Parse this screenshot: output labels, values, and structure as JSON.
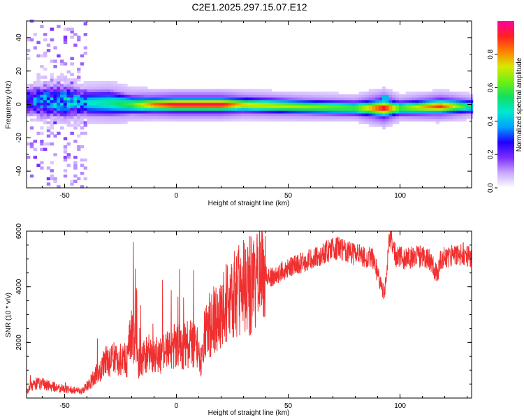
{
  "title": "C2E1.2025.297.15.07.E12",
  "chart_data": [
    {
      "type": "heatmap",
      "xlabel": "Height of straight line (km)",
      "ylabel": "Frequency (Hz)",
      "xlim": [
        -67,
        132
      ],
      "ylim": [
        -50,
        50
      ],
      "xticks": [
        -50,
        0,
        50,
        100
      ],
      "yticks": [
        -40,
        -20,
        0,
        20,
        40
      ],
      "colorbar": {
        "label": "Normalized spectral amplitude",
        "range": [
          0,
          1
        ],
        "ticks": [
          "0.0",
          "0.2",
          "0.4",
          "0.6",
          "0.8"
        ],
        "colors": [
          "#ffffff",
          "#c8a8ff",
          "#7b2cff",
          "#2000ff",
          "#00a0ff",
          "#00e8d0",
          "#10e060",
          "#70f010",
          "#d8e800",
          "#ff8000",
          "#ff2020",
          "#ff00a0"
        ]
      },
      "ridge": [
        {
          "x": -67,
          "f": 2,
          "spread": 8,
          "amp": 0.35
        },
        {
          "x": -60,
          "f": 2,
          "spread": 9,
          "amp": 0.4
        },
        {
          "x": -50,
          "f": 2,
          "spread": 9,
          "amp": 0.45
        },
        {
          "x": -40,
          "f": 1,
          "spread": 7,
          "amp": 0.45
        },
        {
          "x": -30,
          "f": 1,
          "spread": 7,
          "amp": 0.5
        },
        {
          "x": -20,
          "f": 0,
          "spread": 5,
          "amp": 0.6
        },
        {
          "x": -10,
          "f": 0,
          "spread": 4,
          "amp": 0.85
        },
        {
          "x": 0,
          "f": 0,
          "spread": 4,
          "amp": 0.95
        },
        {
          "x": 10,
          "f": 0,
          "spread": 4,
          "amp": 0.95
        },
        {
          "x": 20,
          "f": 0,
          "spread": 4,
          "amp": 0.95
        },
        {
          "x": 30,
          "f": 0,
          "spread": 4,
          "amp": 0.75
        },
        {
          "x": 50,
          "f": -1,
          "spread": 4,
          "amp": 0.7
        },
        {
          "x": 80,
          "f": -2,
          "spread": 4,
          "amp": 0.6
        },
        {
          "x": 93,
          "f": -2,
          "spread": 5,
          "amp": 0.95
        },
        {
          "x": 100,
          "f": -2,
          "spread": 4,
          "amp": 0.6
        },
        {
          "x": 118,
          "f": -1,
          "spread": 4,
          "amp": 0.9
        },
        {
          "x": 132,
          "f": -1,
          "spread": 4,
          "amp": 0.5
        }
      ]
    },
    {
      "type": "line",
      "xlabel": "Height of straight line (km)",
      "ylabel": "SNR (10 * v/v)",
      "xlim": [
        -67,
        132
      ],
      "ylim": [
        0,
        6000
      ],
      "xticks": [
        -50,
        0,
        50,
        100
      ],
      "yticks": [
        2000,
        4000,
        6000
      ],
      "color": "#f03030",
      "series": [
        {
          "x": [
            -67,
            -62,
            -57,
            -52,
            -47,
            -42,
            -37,
            -32,
            -27,
            -22,
            -20,
            -17,
            -12,
            -7,
            -2,
            3,
            8,
            11,
            13,
            18,
            23,
            28,
            33,
            38,
            43,
            48,
            53,
            58,
            63,
            68,
            73,
            78,
            83,
            88,
            93,
            95,
            96,
            98,
            103,
            108,
            113,
            117,
            118,
            123,
            128,
            132
          ],
          "y": [
            300,
            550,
            450,
            350,
            300,
            250,
            700,
            1300,
            1450,
            1350,
            2400,
            1300,
            1600,
            1550,
            1800,
            1850,
            2000,
            1200,
            2500,
            2900,
            3450,
            3800,
            4100,
            4400,
            4350,
            4600,
            4800,
            4900,
            5100,
            5300,
            5400,
            5200,
            5100,
            5000,
            3700,
            5500,
            5800,
            5100,
            5000,
            5100,
            5000,
            4400,
            5000,
            5100,
            5200,
            5000
          ]
        }
      ]
    }
  ]
}
